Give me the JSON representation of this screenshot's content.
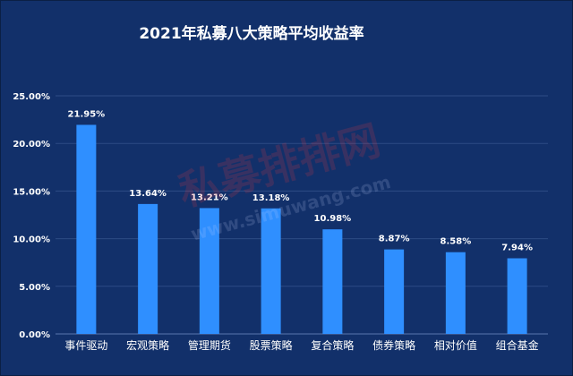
{
  "chart_data": {
    "type": "bar",
    "title": "2021年私募八大策略平均收益率",
    "categories": [
      "事件驱动",
      "宏观策略",
      "管理期货",
      "股票策略",
      "复合策略",
      "债券策略",
      "相对价值",
      "组合基金"
    ],
    "values": [
      21.95,
      13.64,
      13.21,
      13.18,
      10.98,
      8.87,
      8.58,
      7.94
    ],
    "value_labels": [
      "21.95%",
      "13.64%",
      "13.21%",
      "13.18%",
      "10.98%",
      "8.87%",
      "8.58%",
      "7.94%"
    ],
    "yticks": [
      0,
      5,
      10,
      15,
      20,
      25
    ],
    "ytick_labels": [
      "0.00%",
      "5.00%",
      "10.00%",
      "15.00%",
      "20.00%",
      "25.00%"
    ],
    "ylim": [
      0,
      25
    ],
    "xlabel": "",
    "ylabel": "",
    "grid": true,
    "legend": "none",
    "colors": {
      "background": "#12306a",
      "bar": "#2f8fff",
      "grid": "#2d4b85",
      "text": "#ffffff"
    }
  },
  "watermark": {
    "line1": "私募排排网",
    "line2": "www.simuwang.com"
  }
}
